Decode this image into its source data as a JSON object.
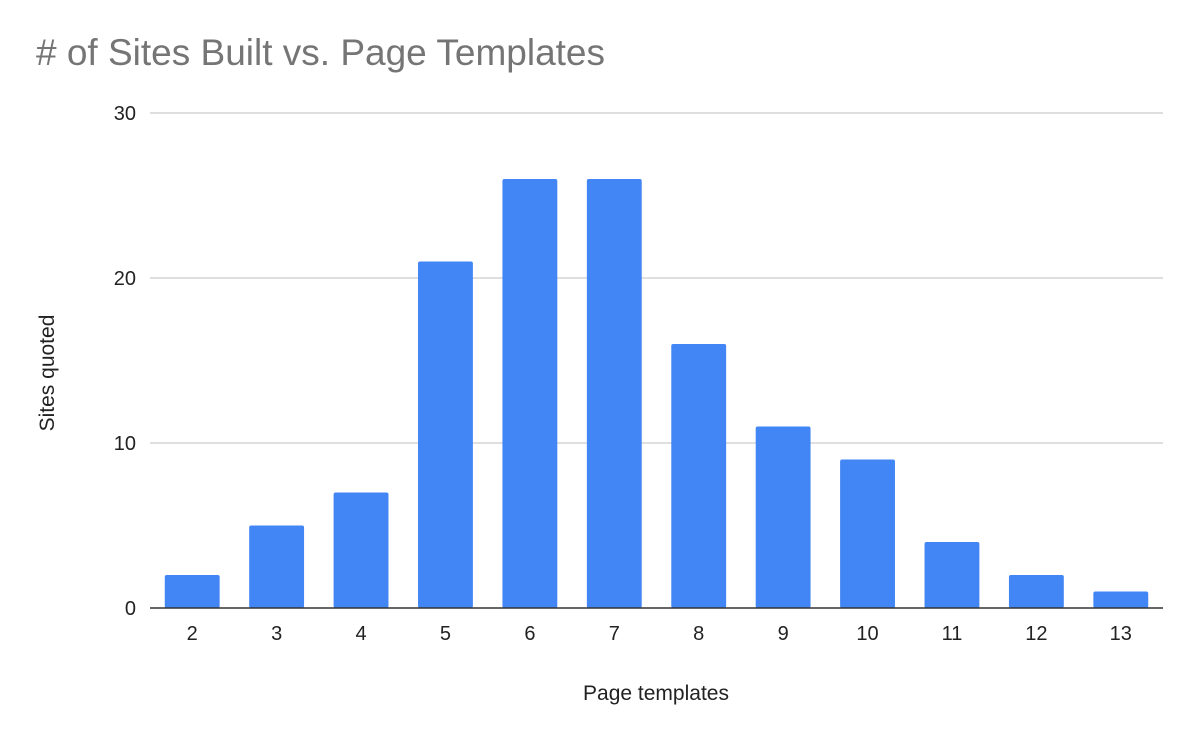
{
  "chart_data": {
    "type": "bar",
    "title": "# of Sites Built vs. Page Templates",
    "xlabel": "Page templates",
    "ylabel": "Sites quoted",
    "categories": [
      "2",
      "3",
      "4",
      "5",
      "6",
      "7",
      "8",
      "9",
      "10",
      "11",
      "12",
      "13"
    ],
    "values": [
      2,
      5,
      7,
      21,
      26,
      26,
      16,
      11,
      9,
      4,
      2,
      1
    ],
    "ylim": [
      0,
      30
    ],
    "yticks": [
      "0",
      "10",
      "20",
      "30"
    ],
    "grid": true,
    "legend": "none",
    "bar_color": "#4285f4",
    "gridline_color": "#cccccc",
    "axis_color": "#333333"
  }
}
